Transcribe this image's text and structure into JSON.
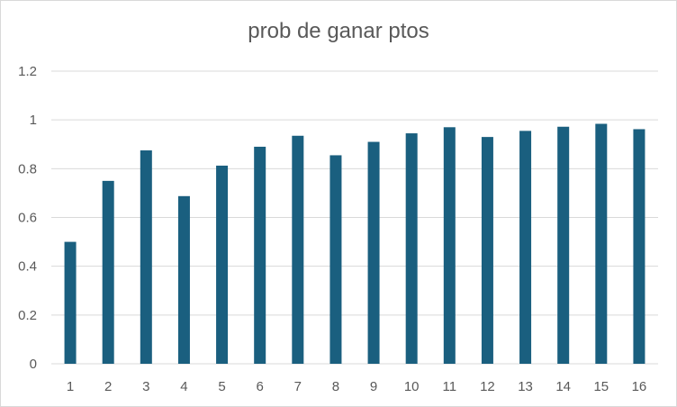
{
  "chart_data": {
    "type": "bar",
    "title": "prob de ganar ptos",
    "xlabel": "",
    "ylabel": "",
    "categories": [
      "1",
      "2",
      "3",
      "4",
      "5",
      "6",
      "7",
      "8",
      "9",
      "10",
      "11",
      "12",
      "13",
      "14",
      "15",
      "16"
    ],
    "values": [
      0.5,
      0.75,
      0.875,
      0.6875,
      0.8125,
      0.89,
      0.935,
      0.855,
      0.91,
      0.945,
      0.97,
      0.93,
      0.955,
      0.972,
      0.984,
      0.962
    ],
    "ylim": [
      0,
      1.2
    ],
    "yticks": [
      "0",
      "0.2",
      "0.4",
      "0.6",
      "0.8",
      "1",
      "1.2"
    ],
    "ytick_values": [
      0,
      0.2,
      0.4,
      0.6,
      0.8,
      1.0,
      1.2
    ],
    "grid": true,
    "legend": "none",
    "bar_color": "#1a5f7f",
    "grid_color": "#d9d9d9"
  }
}
